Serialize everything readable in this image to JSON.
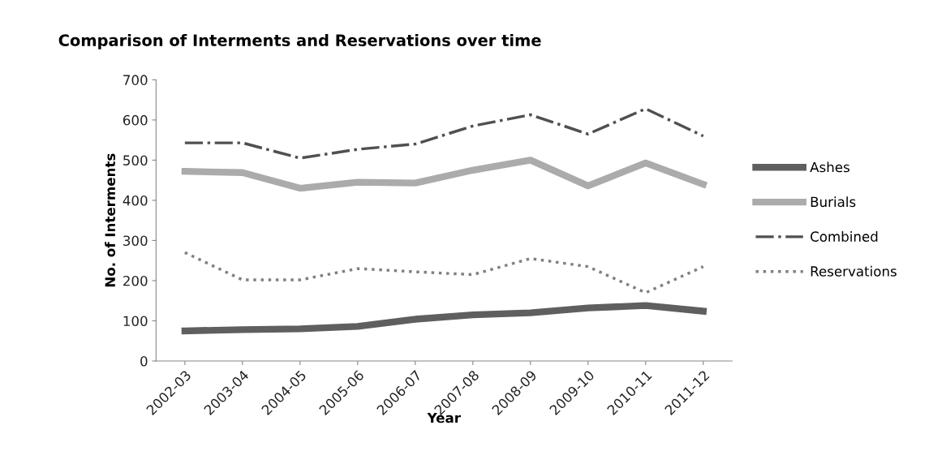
{
  "chart_data": {
    "type": "line",
    "title": "Comparison of Interments and Reservations over time",
    "xlabel": "Year",
    "ylabel": "No. of Interments",
    "categories": [
      "2002-03",
      "2003-04",
      "2004-05",
      "2005-06",
      "2006-07",
      "2007-08",
      "2008-09",
      "2009-10",
      "2010-11",
      "2011-12"
    ],
    "series": [
      {
        "name": "Ashes",
        "color": "#5f5f5f",
        "line_style": "solid",
        "values": [
          75,
          78,
          80,
          86,
          104,
          115,
          120,
          132,
          138,
          124
        ]
      },
      {
        "name": "Burials",
        "color": "#ababab",
        "line_style": "solid",
        "values": [
          472,
          469,
          430,
          445,
          443,
          475,
          500,
          436,
          493,
          440
        ]
      },
      {
        "name": "Combined",
        "color": "#505050",
        "line_style": "dashdot",
        "values": [
          543,
          543,
          505,
          527,
          540,
          585,
          613,
          565,
          628,
          560
        ]
      },
      {
        "name": "Reservations",
        "color": "#808080",
        "line_style": "dotted",
        "values": [
          270,
          202,
          202,
          230,
          222,
          215,
          255,
          235,
          170,
          235
        ]
      }
    ],
    "ylim": [
      0,
      700
    ],
    "yticks": [
      0,
      100,
      200,
      300,
      400,
      500,
      600,
      700
    ],
    "grid": false,
    "legend": "right",
    "marker": "none"
  }
}
